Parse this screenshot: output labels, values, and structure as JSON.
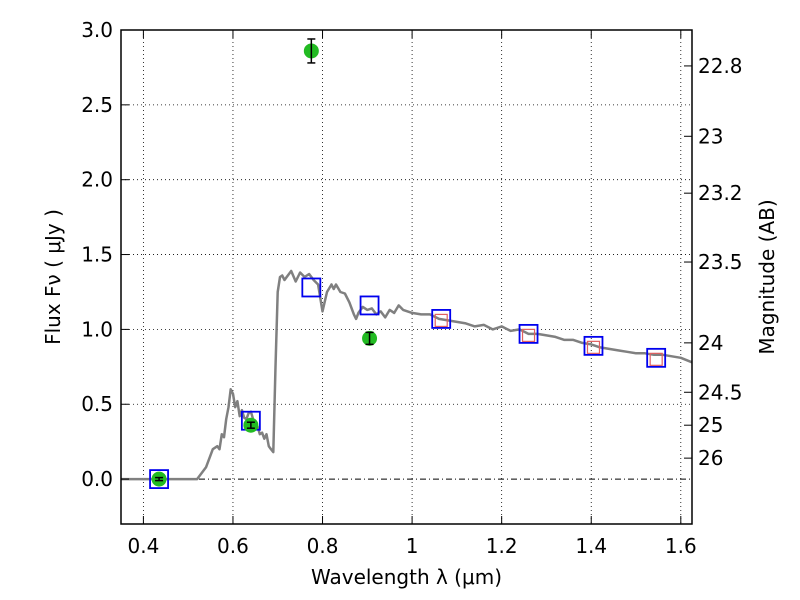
{
  "chart_data": {
    "type": "line",
    "xlabel": "Wavelength  λ (μm)",
    "ylabel": "Flux  Fν  ( μJy )",
    "ylabel_right": "Magnitude (AB)",
    "xlim": [
      0.35,
      1.625
    ],
    "ylim": [
      -0.3,
      3.0
    ],
    "grid": true,
    "x_ticks": [
      0.4,
      0.6,
      0.8,
      1.0,
      1.2,
      1.4,
      1.6
    ],
    "x_tick_labels": [
      "0.4",
      "0.6",
      "0.8",
      "1",
      "1.2",
      "1.4",
      "1.6"
    ],
    "y_ticks": [
      0.0,
      0.5,
      1.0,
      1.5,
      2.0,
      2.5,
      3.0
    ],
    "y_tick_labels": [
      "0.0",
      "0.5",
      "1.0",
      "1.5",
      "2.0",
      "2.5",
      "3.0"
    ],
    "right_ticks": [
      {
        "label": "22.8",
        "flux": 2.76
      },
      {
        "label": "23",
        "flux": 2.29
      },
      {
        "label": "23.2",
        "flux": 1.91
      },
      {
        "label": "23.5",
        "flux": 1.45
      },
      {
        "label": "24",
        "flux": 0.91
      },
      {
        "label": "24.5",
        "flux": 0.58
      },
      {
        "label": "25",
        "flux": 0.36
      },
      {
        "label": "26",
        "flux": 0.14
      }
    ],
    "series": [
      {
        "kind": "model",
        "color": "#808080",
        "x": [
          0.35,
          0.52,
          0.54,
          0.555,
          0.565,
          0.57,
          0.575,
          0.58,
          0.585,
          0.59,
          0.595,
          0.6,
          0.605,
          0.61,
          0.615,
          0.62,
          0.625,
          0.63,
          0.635,
          0.64,
          0.645,
          0.65,
          0.655,
          0.66,
          0.665,
          0.67,
          0.675,
          0.68,
          0.685,
          0.69,
          0.695,
          0.7,
          0.705,
          0.71,
          0.715,
          0.72,
          0.73,
          0.74,
          0.75,
          0.76,
          0.77,
          0.78,
          0.79,
          0.8,
          0.81,
          0.82,
          0.825,
          0.83,
          0.84,
          0.85,
          0.86,
          0.87,
          0.875,
          0.88,
          0.89,
          0.9,
          0.91,
          0.92,
          0.93,
          0.94,
          0.95,
          0.96,
          0.97,
          0.98,
          1.0,
          1.02,
          1.04,
          1.06,
          1.08,
          1.1,
          1.12,
          1.14,
          1.16,
          1.18,
          1.2,
          1.22,
          1.24,
          1.26,
          1.28,
          1.3,
          1.32,
          1.34,
          1.36,
          1.38,
          1.4,
          1.42,
          1.44,
          1.46,
          1.48,
          1.5,
          1.52,
          1.54,
          1.56,
          1.58,
          1.6,
          1.625
        ],
        "y": [
          0.0,
          0.0,
          0.08,
          0.2,
          0.22,
          0.2,
          0.3,
          0.28,
          0.4,
          0.48,
          0.6,
          0.57,
          0.48,
          0.52,
          0.42,
          0.46,
          0.41,
          0.4,
          0.44,
          0.45,
          0.4,
          0.37,
          0.35,
          0.3,
          0.31,
          0.27,
          0.3,
          0.22,
          0.2,
          0.18,
          0.75,
          1.25,
          1.35,
          1.36,
          1.33,
          1.35,
          1.39,
          1.32,
          1.38,
          1.35,
          1.37,
          1.33,
          1.3,
          1.12,
          1.25,
          1.3,
          1.27,
          1.3,
          1.25,
          1.24,
          1.18,
          1.1,
          1.07,
          1.11,
          1.15,
          1.13,
          1.14,
          1.1,
          1.12,
          1.08,
          1.13,
          1.11,
          1.16,
          1.13,
          1.11,
          1.1,
          1.1,
          1.07,
          1.06,
          1.05,
          1.04,
          1.02,
          1.03,
          1.0,
          1.02,
          0.99,
          1.0,
          0.97,
          0.97,
          0.96,
          0.95,
          0.93,
          0.93,
          0.91,
          0.9,
          0.88,
          0.87,
          0.86,
          0.85,
          0.84,
          0.84,
          0.83,
          0.83,
          0.82,
          0.81,
          0.78
        ]
      },
      {
        "kind": "model_photometry_blue_squares",
        "color": "#0000ee",
        "x": [
          0.435,
          0.64,
          0.775,
          0.905,
          1.065,
          1.26,
          1.405,
          1.545
        ],
        "y": [
          0.0,
          0.39,
          1.28,
          1.16,
          1.07,
          0.97,
          0.89,
          0.81
        ]
      },
      {
        "kind": "model_photometry_red_squares",
        "color": "#e06060",
        "x": [
          1.065,
          1.26,
          1.405,
          1.545
        ],
        "y": [
          1.06,
          0.96,
          0.88,
          0.8
        ]
      },
      {
        "kind": "observed_green_points",
        "color": "#22bb22",
        "x": [
          0.435,
          0.64,
          0.775,
          0.905
        ],
        "y": [
          0.0,
          0.36,
          2.86,
          0.94
        ],
        "yerr": [
          0.01,
          0.02,
          0.08,
          0.04
        ]
      }
    ]
  }
}
